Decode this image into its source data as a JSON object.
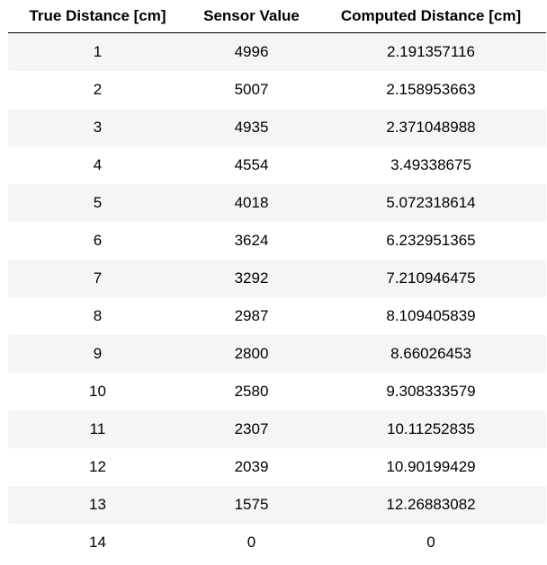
{
  "table": {
    "headers": [
      "True Distance [cm]",
      "Sensor Value",
      "Computed Distance [cm]"
    ],
    "rows": [
      [
        "1",
        "4996",
        "2.191357116"
      ],
      [
        "2",
        "5007",
        "2.158953663"
      ],
      [
        "3",
        "4935",
        "2.371048988"
      ],
      [
        "4",
        "4554",
        "3.49338675"
      ],
      [
        "5",
        "4018",
        "5.072318614"
      ],
      [
        "6",
        "3624",
        "6.232951365"
      ],
      [
        "7",
        "3292",
        "7.210946475"
      ],
      [
        "8",
        "2987",
        "8.109405839"
      ],
      [
        "9",
        "2800",
        "8.66026453"
      ],
      [
        "10",
        "2580",
        "9.308333579"
      ],
      [
        "11",
        "2307",
        "10.11252835"
      ],
      [
        "12",
        "2039",
        "10.90199429"
      ],
      [
        "13",
        "1575",
        "12.26883082"
      ],
      [
        "14",
        "0",
        "0"
      ]
    ]
  }
}
